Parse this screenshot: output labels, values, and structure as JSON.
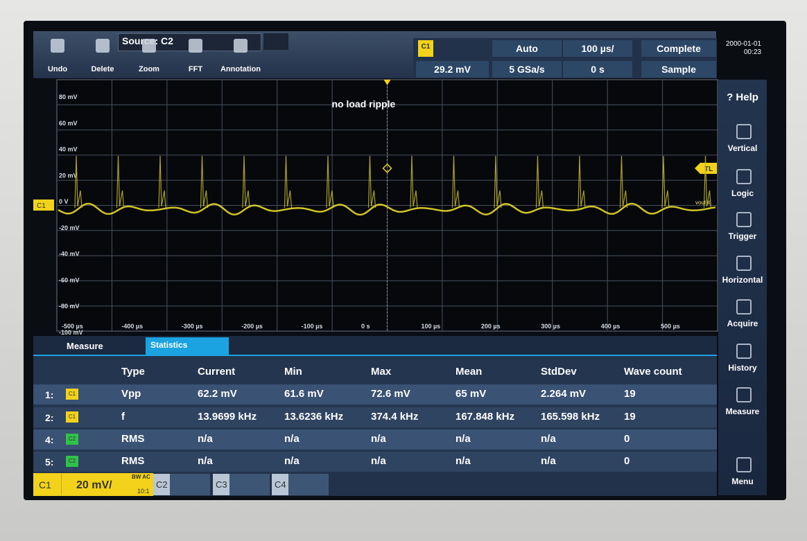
{
  "toolbar": {
    "undo": "Undo",
    "delete": "Delete",
    "zoom": "Zoom",
    "fft": "FFT",
    "annotation": "Annotation",
    "source": "Source: C2"
  },
  "status": {
    "channel": "C1",
    "trigger_level": "29.2 mV",
    "trigger_mode": "Auto",
    "sample_rate": "5 GSa/s",
    "time_scale": "100 µs/",
    "time_offset": "0 s",
    "acquisition": "Complete",
    "acquisition_mode": "Sample",
    "date": "2000-01-01",
    "time": "00:23"
  },
  "sidebar": [
    "? Help",
    "Vertical",
    "Logic",
    "Trigger",
    "Horizontal",
    "Acquire",
    "History",
    "Measure",
    "Menu"
  ],
  "waveform": {
    "annotation": "no load ripple",
    "channel": "C1",
    "trigger_label": "TL",
    "probe_label": "vout lt",
    "y_labels": [
      "80 mV",
      "60 mV",
      "40 mV",
      "20 mV",
      "0 V",
      "-20 mV",
      "-40 mV",
      "-60 mV",
      "-80 mV",
      "-100 mV"
    ],
    "x_labels": [
      "-500 µs",
      "-400 µs",
      "-300 µs",
      "-200 µs",
      "-100 µs",
      "0 s",
      "100 µs",
      "200 µs",
      "300 µs",
      "400 µs",
      "500 µs"
    ]
  },
  "measure_panel": {
    "tabs": [
      "Measure",
      "Statistics"
    ],
    "columns": [
      "Type",
      "Current",
      "Min",
      "Max",
      "Mean",
      "StdDev",
      "Wave count"
    ],
    "rows": [
      {
        "index": "1:",
        "source": "C1",
        "cells": [
          "Vpp",
          "62.2 mV",
          "61.6 mV",
          "72.6 mV",
          "65 mV",
          "2.264 mV",
          "19"
        ]
      },
      {
        "index": "2:",
        "source": "C1",
        "cells": [
          "f",
          "13.9699 kHz",
          "13.6236 kHz",
          "374.4 kHz",
          "167.848 kHz",
          "165.598 kHz",
          "19"
        ]
      },
      {
        "index": "4:",
        "source": "C2",
        "cells": [
          "RMS",
          "n/a",
          "n/a",
          "n/a",
          "n/a",
          "n/a",
          "0"
        ]
      },
      {
        "index": "5:",
        "source": "C2",
        "cells": [
          "RMS",
          "n/a",
          "n/a",
          "n/a",
          "n/a",
          "n/a",
          "0"
        ]
      }
    ]
  },
  "channel_bar": {
    "c1": "C1",
    "scale": "20 mV/",
    "bandwidth": "BW AC",
    "probe": "10:1",
    "c2": "C2",
    "c3": "C3",
    "c4": "C4"
  }
}
